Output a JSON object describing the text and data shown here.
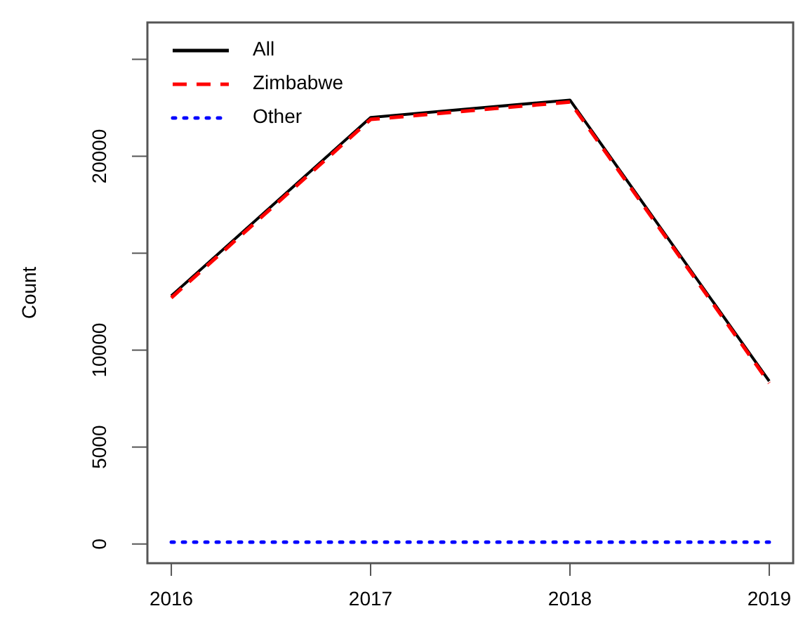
{
  "chart_data": {
    "type": "line",
    "ylabel": "Count",
    "x": [
      2016,
      2017,
      2018,
      2019
    ],
    "xlim": [
      2015.88,
      2019.12
    ],
    "xticks": [
      2016,
      2017,
      2018,
      2019
    ],
    "ylim": [
      -990,
      26900
    ],
    "yticks": [
      0,
      5000,
      10000,
      {
        "value": 15000,
        "label": null
      },
      20000,
      {
        "value": 25000,
        "label": null
      }
    ],
    "series": [
      {
        "name": "All",
        "color": "#000000",
        "line_style": "solid",
        "values": [
          12800,
          22000,
          22900,
          8400
        ]
      },
      {
        "name": "Zimbabwe",
        "color": "#ff0000",
        "line_style": "dashed",
        "values": [
          12700,
          21900,
          22800,
          8300
        ]
      },
      {
        "name": "Other",
        "color": "#0000ff",
        "line_style": "dotted",
        "values": [
          100,
          100,
          100,
          100
        ]
      }
    ],
    "legend": "top left",
    "grid": false
  }
}
